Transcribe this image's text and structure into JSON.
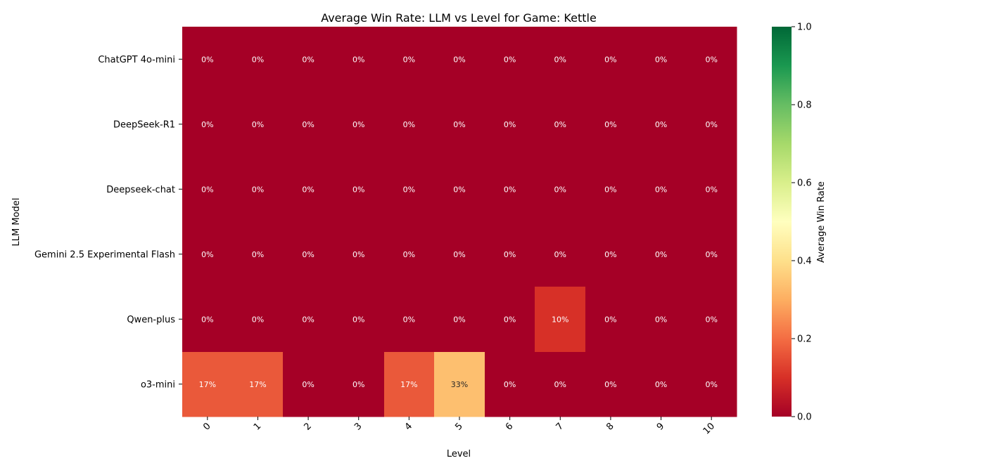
{
  "chart_data": {
    "type": "heatmap",
    "title": "Average Win Rate: LLM vs Level for Game: Kettle",
    "xlabel": "Level",
    "ylabel": "LLM Model",
    "x_categories": [
      "0",
      "1",
      "2",
      "3",
      "4",
      "5",
      "6",
      "7",
      "8",
      "9",
      "10"
    ],
    "y_categories": [
      "ChatGPT 4o-mini",
      "DeepSeek-R1",
      "Deepseek-chat",
      "Gemini 2.5 Experimental Flash",
      "Qwen-plus",
      "o3-mini"
    ],
    "values": [
      [
        0,
        0,
        0,
        0,
        0,
        0,
        0,
        0,
        0,
        0,
        0
      ],
      [
        0,
        0,
        0,
        0,
        0,
        0,
        0,
        0,
        0,
        0,
        0
      ],
      [
        0,
        0,
        0,
        0,
        0,
        0,
        0,
        0,
        0,
        0,
        0
      ],
      [
        0,
        0,
        0,
        0,
        0,
        0,
        0,
        0,
        0,
        0,
        0
      ],
      [
        0,
        0,
        0,
        0,
        0,
        0,
        0,
        0.1,
        0,
        0,
        0
      ],
      [
        0.1667,
        0.1667,
        0,
        0,
        0.1667,
        0.3333,
        0,
        0,
        0,
        0,
        0
      ]
    ],
    "labels": [
      [
        "0%",
        "0%",
        "0%",
        "0%",
        "0%",
        "0%",
        "0%",
        "0%",
        "0%",
        "0%",
        "0%"
      ],
      [
        "0%",
        "0%",
        "0%",
        "0%",
        "0%",
        "0%",
        "0%",
        "0%",
        "0%",
        "0%",
        "0%"
      ],
      [
        "0%",
        "0%",
        "0%",
        "0%",
        "0%",
        "0%",
        "0%",
        "0%",
        "0%",
        "0%",
        "0%"
      ],
      [
        "0%",
        "0%",
        "0%",
        "0%",
        "0%",
        "0%",
        "0%",
        "0%",
        "0%",
        "0%",
        "0%"
      ],
      [
        "0%",
        "0%",
        "0%",
        "0%",
        "0%",
        "0%",
        "0%",
        "10%",
        "0%",
        "0%",
        "0%"
      ],
      [
        "17%",
        "17%",
        "0%",
        "0%",
        "17%",
        "33%",
        "0%",
        "0%",
        "0%",
        "0%",
        "0%"
      ]
    ],
    "colorbar": {
      "label": "Average Win Rate",
      "range": [
        0,
        1
      ],
      "ticks": [
        "0.0",
        "0.2",
        "0.4",
        "0.6",
        "0.8",
        "1.0"
      ],
      "colormap": "RdYlGn",
      "colors": [
        "#a50026",
        "#d73027",
        "#f46d43",
        "#fdae61",
        "#fee08b",
        "#ffffbf",
        "#d9ef8b",
        "#a6d96a",
        "#66bd63",
        "#1a9850",
        "#006837"
      ]
    }
  }
}
